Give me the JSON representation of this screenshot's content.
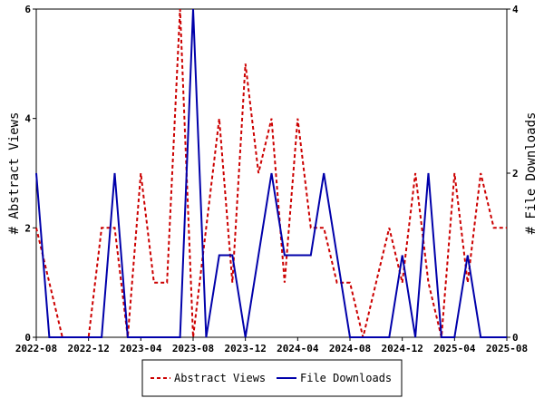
{
  "chart_data": {
    "type": "line",
    "x": [
      "2022-08",
      "2022-09",
      "2022-10",
      "2022-11",
      "2022-12",
      "2023-01",
      "2023-02",
      "2023-03",
      "2023-04",
      "2023-05",
      "2023-06",
      "2023-07",
      "2023-08",
      "2023-09",
      "2023-10",
      "2023-11",
      "2023-12",
      "2024-01",
      "2024-02",
      "2024-03",
      "2024-04",
      "2024-05",
      "2024-06",
      "2024-07",
      "2024-08",
      "2024-09",
      "2024-10",
      "2024-11",
      "2024-12",
      "2025-01",
      "2025-02",
      "2025-03",
      "2025-04",
      "2025-05",
      "2025-06",
      "2025-07",
      "2025-08"
    ],
    "x_ticks": [
      "2022-08",
      "2022-12",
      "2023-04",
      "2023-08",
      "2023-12",
      "2024-04",
      "2024-08",
      "2024-12",
      "2025-04",
      "2025-08"
    ],
    "series": [
      {
        "name": "Abstract Views",
        "axis": "left",
        "color": "#cc0000",
        "style": "dashed",
        "values": [
          2,
          1,
          0,
          0,
          0,
          2,
          2,
          0,
          3,
          1,
          1,
          6,
          0,
          2,
          4,
          1,
          5,
          3,
          4,
          1,
          4,
          2,
          2,
          1,
          1,
          0,
          1,
          2,
          1,
          3,
          1,
          0,
          3,
          1,
          3,
          2,
          2
        ]
      },
      {
        "name": "File Downloads",
        "axis": "right",
        "color": "#0000aa",
        "style": "solid",
        "values": [
          2,
          0,
          0,
          0,
          0,
          0,
          2,
          0,
          0,
          0,
          0,
          0,
          4,
          0,
          1,
          1,
          0,
          1,
          2,
          1,
          1,
          1,
          2,
          1,
          0,
          0,
          0,
          0,
          1,
          0,
          2,
          0,
          0,
          1,
          0,
          0,
          0
        ]
      }
    ],
    "ylabel": "# Abstract Views",
    "y2label": "# File Downloads",
    "ylim": [
      0,
      6
    ],
    "y_ticks": [
      "0",
      "2",
      "4",
      "6"
    ],
    "y2lim": [
      0,
      4
    ],
    "y2_ticks": [
      "0",
      "2",
      "4"
    ],
    "grid": false,
    "legend_position": "bottom"
  }
}
